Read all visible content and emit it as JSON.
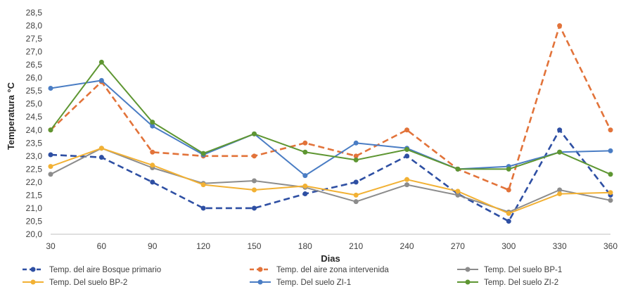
{
  "chart_data": {
    "type": "line",
    "title": "",
    "xlabel": "Dias",
    "ylabel": "Temperatura °C",
    "x": [
      30,
      60,
      90,
      120,
      150,
      180,
      210,
      240,
      270,
      300,
      330,
      360
    ],
    "ylim": [
      20.0,
      28.5
    ],
    "ystep": 0.5,
    "y_ticks": [
      "20,0",
      "20,5",
      "21,0",
      "21,5",
      "22,0",
      "22,5",
      "23,0",
      "23,5",
      "24,0",
      "24,5",
      "25,0",
      "25,5",
      "26,0",
      "26,5",
      "27,0",
      "27,5",
      "28,0",
      "28,5"
    ],
    "x_ticks": [
      "30",
      "60",
      "90",
      "120",
      "150",
      "180",
      "210",
      "240",
      "270",
      "300",
      "330",
      "360"
    ],
    "grid": false,
    "legend_position": "bottom",
    "series": [
      {
        "name": "Temp. del aire Bosque primario",
        "color": "#2E4FA3",
        "dash": true,
        "values": [
          23.05,
          22.95,
          22.0,
          21.0,
          21.0,
          21.55,
          22.0,
          23.0,
          21.55,
          20.5,
          24.0,
          21.5
        ]
      },
      {
        "name": "Temp. del aire zona intervenida",
        "color": "#E2733A",
        "dash": true,
        "values": [
          24.0,
          25.85,
          23.15,
          23.0,
          23.0,
          23.5,
          23.0,
          24.0,
          22.5,
          21.7,
          28.0,
          24.0
        ]
      },
      {
        "name": "Temp. Del suelo BP-1",
        "color": "#8C8C8C",
        "dash": false,
        "values": [
          22.3,
          23.3,
          22.55,
          21.95,
          22.05,
          21.8,
          21.25,
          21.9,
          21.5,
          20.85,
          21.7,
          21.3
        ]
      },
      {
        "name": "Temp. Del suelo BP-2",
        "color": "#F2B134",
        "dash": false,
        "values": [
          22.6,
          23.3,
          22.65,
          21.9,
          21.7,
          21.85,
          21.5,
          22.1,
          21.65,
          20.8,
          21.55,
          21.6
        ]
      },
      {
        "name": "Temp. Del suelo ZI-1",
        "color": "#4A7DC4",
        "dash": false,
        "values": [
          25.6,
          25.9,
          24.15,
          23.05,
          23.85,
          22.25,
          23.5,
          23.3,
          22.5,
          22.6,
          23.15,
          23.2
        ]
      },
      {
        "name": "Temp. Del suelo ZI-2",
        "color": "#5E9632",
        "dash": false,
        "values": [
          24.0,
          26.6,
          24.3,
          23.1,
          23.85,
          23.15,
          22.85,
          23.25,
          22.5,
          22.5,
          23.15,
          22.3
        ]
      }
    ]
  }
}
